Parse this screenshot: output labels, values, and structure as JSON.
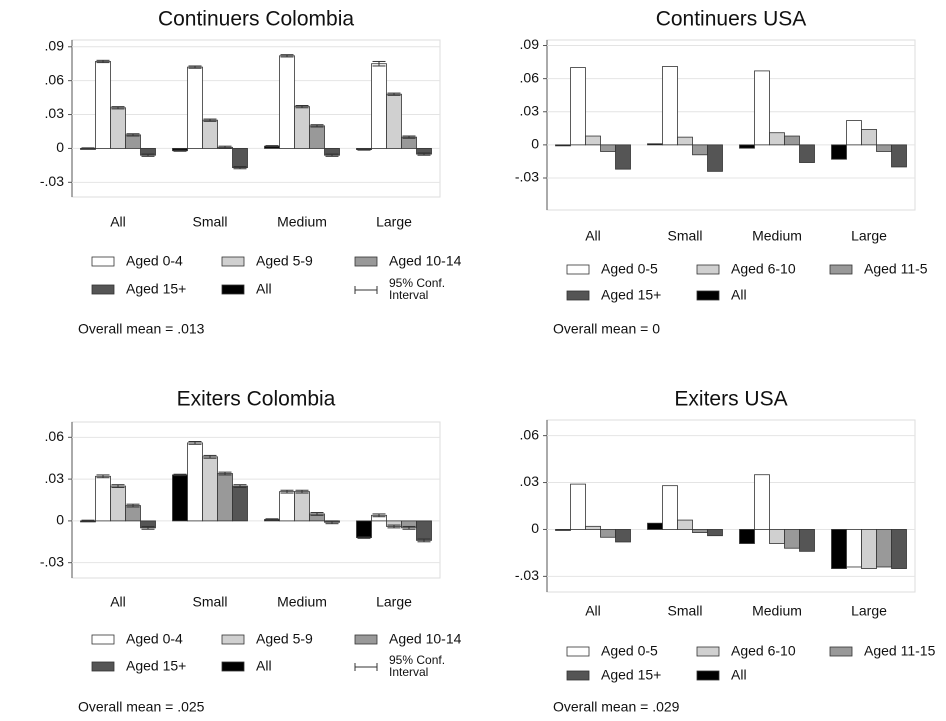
{
  "chart_data": [
    {
      "type": "bar",
      "title": "Continuers Colombia",
      "categories": [
        "All",
        "Small",
        "Medium",
        "Large"
      ],
      "series": [
        {
          "name": "Aged 0-4",
          "color": "#ffffff",
          "values": [
            0.077,
            0.072,
            0.082,
            0.075
          ],
          "errors": [
            0.001,
            0.001,
            0.001,
            0.002
          ]
        },
        {
          "name": "Aged 5-9",
          "color": "#d0d0d0",
          "values": [
            0.036,
            0.025,
            0.037,
            0.048
          ],
          "errors": [
            0.001,
            0.001,
            0.001,
            0.001
          ]
        },
        {
          "name": "Aged 10-14",
          "color": "#999999",
          "values": [
            0.012,
            0.001,
            0.02,
            0.01
          ],
          "errors": [
            0.001,
            0.001,
            0.001,
            0.001
          ]
        },
        {
          "name": "Aged 15+",
          "color": "#555555",
          "values": [
            -0.006,
            -0.017,
            -0.006,
            -0.005
          ],
          "errors": [
            0.001,
            0.001,
            0.001,
            0.001
          ]
        },
        {
          "name": "All",
          "color": "#000000",
          "values": [
            0,
            -0.002,
            0.002,
            -0.001
          ],
          "errors": [
            0.0005,
            0.0005,
            0.0005,
            0.0005
          ]
        }
      ],
      "ci_label": [
        "95% Conf.",
        "Interval"
      ],
      "note": "Overall mean = .013",
      "ylim": [
        -0.043,
        0.096
      ],
      "yticks": [
        {
          "value": -0.03,
          "label": "-.03"
        },
        0,
        {
          "value": 0.03,
          "label": ".03"
        },
        {
          "value": 0.06,
          "label": ".06"
        },
        {
          "value": 0.09,
          "label": ".09"
        }
      ],
      "grid": true
    },
    {
      "type": "bar",
      "title": "Continuers USA",
      "categories": [
        "All",
        "Small",
        "Medium",
        "Large"
      ],
      "series": [
        {
          "name": "Aged 0-5",
          "color": "#ffffff",
          "values": [
            0.07,
            0.071,
            0.067,
            0.022
          ]
        },
        {
          "name": "Aged 6-10",
          "color": "#d0d0d0",
          "values": [
            0.008,
            0.007,
            0.011,
            0.014
          ]
        },
        {
          "name": "Aged 11-5",
          "color": "#999999",
          "values": [
            -0.006,
            -0.009,
            0.008,
            -0.006
          ]
        },
        {
          "name": "Aged 15+",
          "color": "#555555",
          "values": [
            -0.022,
            -0.024,
            -0.016,
            -0.02
          ]
        },
        {
          "name": "All",
          "color": "#000000",
          "values": [
            0,
            0.001,
            -0.003,
            -0.013
          ]
        }
      ],
      "note": "Overall mean = 0",
      "ylim": [
        -0.059,
        0.095
      ],
      "yticks": [
        {
          "value": -0.03,
          "label": "-.03"
        },
        0,
        {
          "value": 0.03,
          "label": ".03"
        },
        {
          "value": 0.06,
          "label": ".06"
        },
        {
          "value": 0.09,
          "label": ".09"
        }
      ],
      "grid": true
    },
    {
      "type": "bar",
      "title": "Exiters Colombia",
      "categories": [
        "All",
        "Small",
        "Medium",
        "Large"
      ],
      "series": [
        {
          "name": "Aged 0-4",
          "color": "#ffffff",
          "values": [
            0.032,
            0.056,
            0.021,
            0.004
          ],
          "errors": [
            0.001,
            0.001,
            0.001,
            0.001
          ]
        },
        {
          "name": "Aged 5-9",
          "color": "#d0d0d0",
          "values": [
            0.025,
            0.046,
            0.021,
            -0.004
          ],
          "errors": [
            0.001,
            0.001,
            0.001,
            0.001
          ]
        },
        {
          "name": "Aged 10-14",
          "color": "#999999",
          "values": [
            0.011,
            0.034,
            0.005,
            -0.005
          ],
          "errors": [
            0.001,
            0.001,
            0.001,
            0.001
          ]
        },
        {
          "name": "Aged 15+",
          "color": "#555555",
          "values": [
            -0.005,
            0.025,
            -0.001,
            -0.014
          ],
          "errors": [
            0.001,
            0.001,
            0.001,
            0.001
          ]
        },
        {
          "name": "All",
          "color": "#000000",
          "values": [
            0,
            0.033,
            0.001,
            -0.012
          ],
          "errors": [
            0.0005,
            0.0005,
            0.0005,
            0.0005
          ]
        }
      ],
      "ci_label": [
        "95% Conf.",
        "Interval"
      ],
      "note": "Overall mean = .025",
      "ylim": [
        -0.041,
        0.071
      ],
      "yticks": [
        {
          "value": -0.03,
          "label": "-.03"
        },
        0,
        {
          "value": 0.03,
          "label": ".03"
        },
        {
          "value": 0.06,
          "label": ".06"
        }
      ],
      "grid": true
    },
    {
      "type": "bar",
      "title": "Exiters USA",
      "categories": [
        "All",
        "Small",
        "Medium",
        "Large"
      ],
      "series": [
        {
          "name": "Aged 0-5",
          "color": "#ffffff",
          "values": [
            0.029,
            0.028,
            0.035,
            -0.024
          ]
        },
        {
          "name": "Aged 6-10",
          "color": "#d0d0d0",
          "values": [
            0.002,
            0.006,
            -0.009,
            -0.025
          ]
        },
        {
          "name": "Aged 11-15",
          "color": "#999999",
          "values": [
            -0.005,
            -0.002,
            -0.012,
            -0.024
          ]
        },
        {
          "name": "Aged 15+",
          "color": "#555555",
          "values": [
            -0.008,
            -0.004,
            -0.014,
            -0.025
          ]
        },
        {
          "name": "All",
          "color": "#000000",
          "values": [
            0,
            0.004,
            -0.009,
            -0.025
          ]
        }
      ],
      "note": "Overall mean = .029",
      "ylim": [
        -0.04,
        0.07
      ],
      "yticks": [
        {
          "value": -0.03,
          "label": "-.03"
        },
        0,
        {
          "value": 0.03,
          "label": ".03"
        },
        {
          "value": 0.06,
          "label": ".06"
        }
      ],
      "grid": true
    }
  ]
}
